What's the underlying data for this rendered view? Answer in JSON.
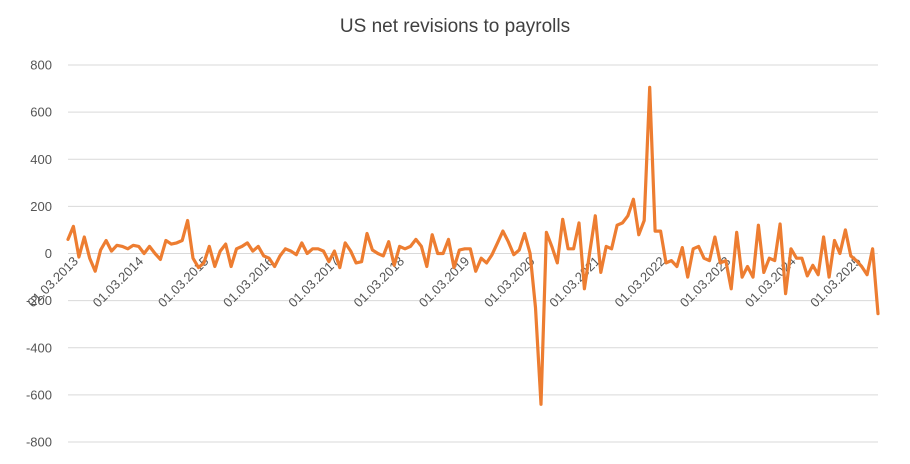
{
  "chart_data": {
    "type": "line",
    "title": "US net revisions to payrolls",
    "xlabel": "",
    "ylabel": "",
    "ylim": [
      -800,
      800
    ],
    "yticks": [
      800,
      600,
      400,
      200,
      0,
      -200,
      -400,
      -600,
      -800
    ],
    "xticks": [
      "01.03.2013",
      "01.03.2014",
      "01.03.2015",
      "01.03.2016",
      "01.03.2017",
      "01.03.2018",
      "01.03.2019",
      "01.03.2020",
      "01.03.2021",
      "01.03.2022",
      "01.03.2023",
      "01.03.2024",
      "01.03.2025"
    ],
    "grid": true,
    "legend": "none",
    "color": "#ED7D31",
    "series": [
      {
        "values": [
          60,
          115,
          -15,
          70,
          -20,
          -75,
          15,
          55,
          10,
          35,
          30,
          20,
          35,
          30,
          0,
          30,
          0,
          -25,
          55,
          40,
          45,
          55,
          140,
          -20,
          -60,
          -40,
          30,
          -55,
          10,
          40,
          -55,
          20,
          30,
          45,
          10,
          30,
          -10,
          -20,
          -55,
          -10,
          20,
          10,
          -5,
          45,
          0,
          20,
          20,
          10,
          -35,
          10,
          -60,
          45,
          10,
          -40,
          -35,
          85,
          15,
          0,
          -10,
          50,
          -50,
          30,
          20,
          30,
          60,
          30,
          -55,
          80,
          0,
          0,
          60,
          -60,
          15,
          20,
          20,
          -75,
          -20,
          -40,
          -5,
          45,
          95,
          50,
          -5,
          15,
          85,
          0,
          -230,
          -640,
          90,
          30,
          -40,
          145,
          20,
          20,
          130,
          -150,
          10,
          160,
          -80,
          30,
          20,
          120,
          130,
          160,
          230,
          80,
          140,
          705,
          95,
          95,
          -40,
          -30,
          -55,
          25,
          -100,
          20,
          30,
          -20,
          -30,
          70,
          -40,
          -30,
          -150,
          90,
          -100,
          -55,
          -100,
          120,
          -80,
          -20,
          -30,
          125,
          -170,
          20,
          -20,
          -20,
          -95,
          -50,
          -90,
          70,
          -100,
          55,
          0,
          100,
          -10,
          -30,
          -55,
          -90,
          20,
          -255
        ]
      }
    ]
  }
}
